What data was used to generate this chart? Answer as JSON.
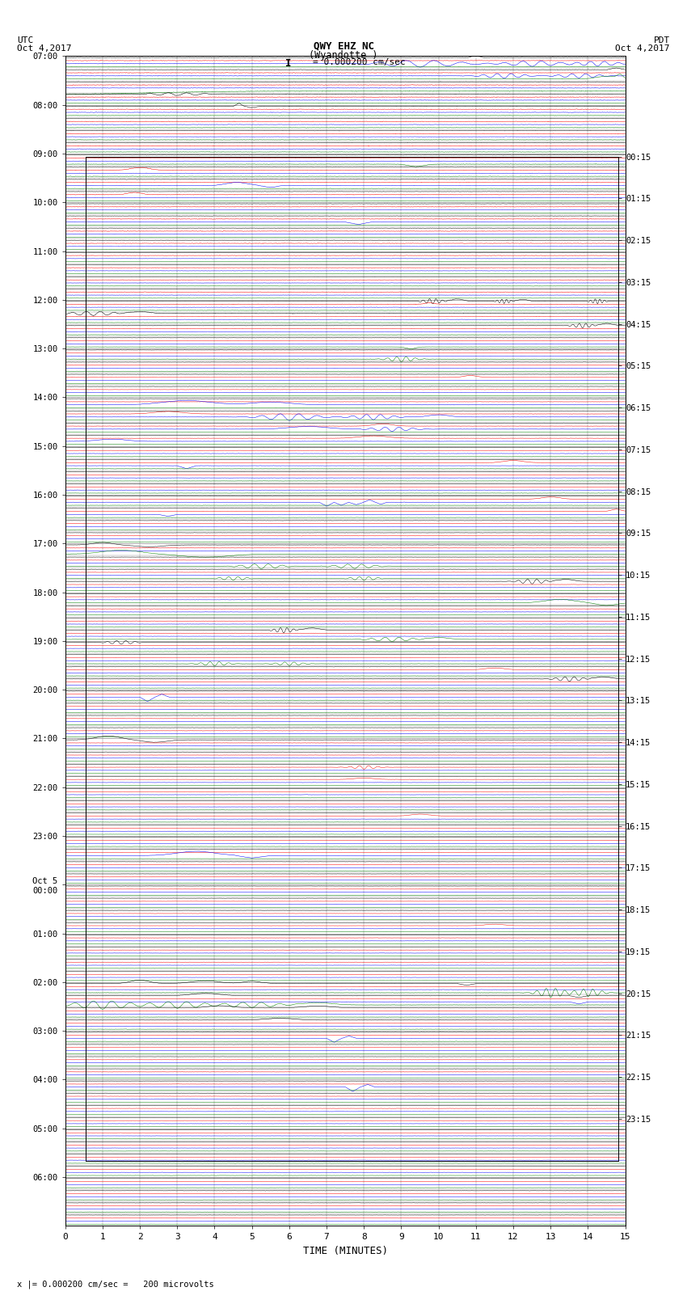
{
  "title_line1": "QWY EHZ NC",
  "title_line2": "(Wyandotte )",
  "scale_text": "I = 0.000200 cm/sec",
  "left_label": "UTC\nOct 4,2017",
  "right_label": "PDT\nOct 4,2017",
  "bottom_label": "TIME (MINUTES)",
  "footnote": "x |= 0.000200 cm/sec =   200 microvolts",
  "x_min": 0,
  "x_max": 15,
  "background_color": "#ffffff",
  "grid_color": "#888888",
  "trace_colors": [
    "black",
    "red",
    "blue",
    "green"
  ],
  "utc_hour_labels": [
    "07:00",
    "08:00",
    "09:00",
    "10:00",
    "11:00",
    "12:00",
    "13:00",
    "14:00",
    "15:00",
    "16:00",
    "17:00",
    "18:00",
    "19:00",
    "20:00",
    "21:00",
    "22:00",
    "23:00",
    "Oct 5\n00:00",
    "01:00",
    "02:00",
    "03:00",
    "04:00",
    "05:00",
    "06:00"
  ],
  "pdt_hour_labels": [
    "00:15",
    "01:15",
    "02:15",
    "03:15",
    "04:15",
    "05:15",
    "06:15",
    "07:15",
    "08:15",
    "09:15",
    "10:15",
    "11:15",
    "12:15",
    "13:15",
    "14:15",
    "15:15",
    "16:15",
    "17:15",
    "18:15",
    "19:15",
    "20:15",
    "21:15",
    "22:15",
    "23:15"
  ]
}
